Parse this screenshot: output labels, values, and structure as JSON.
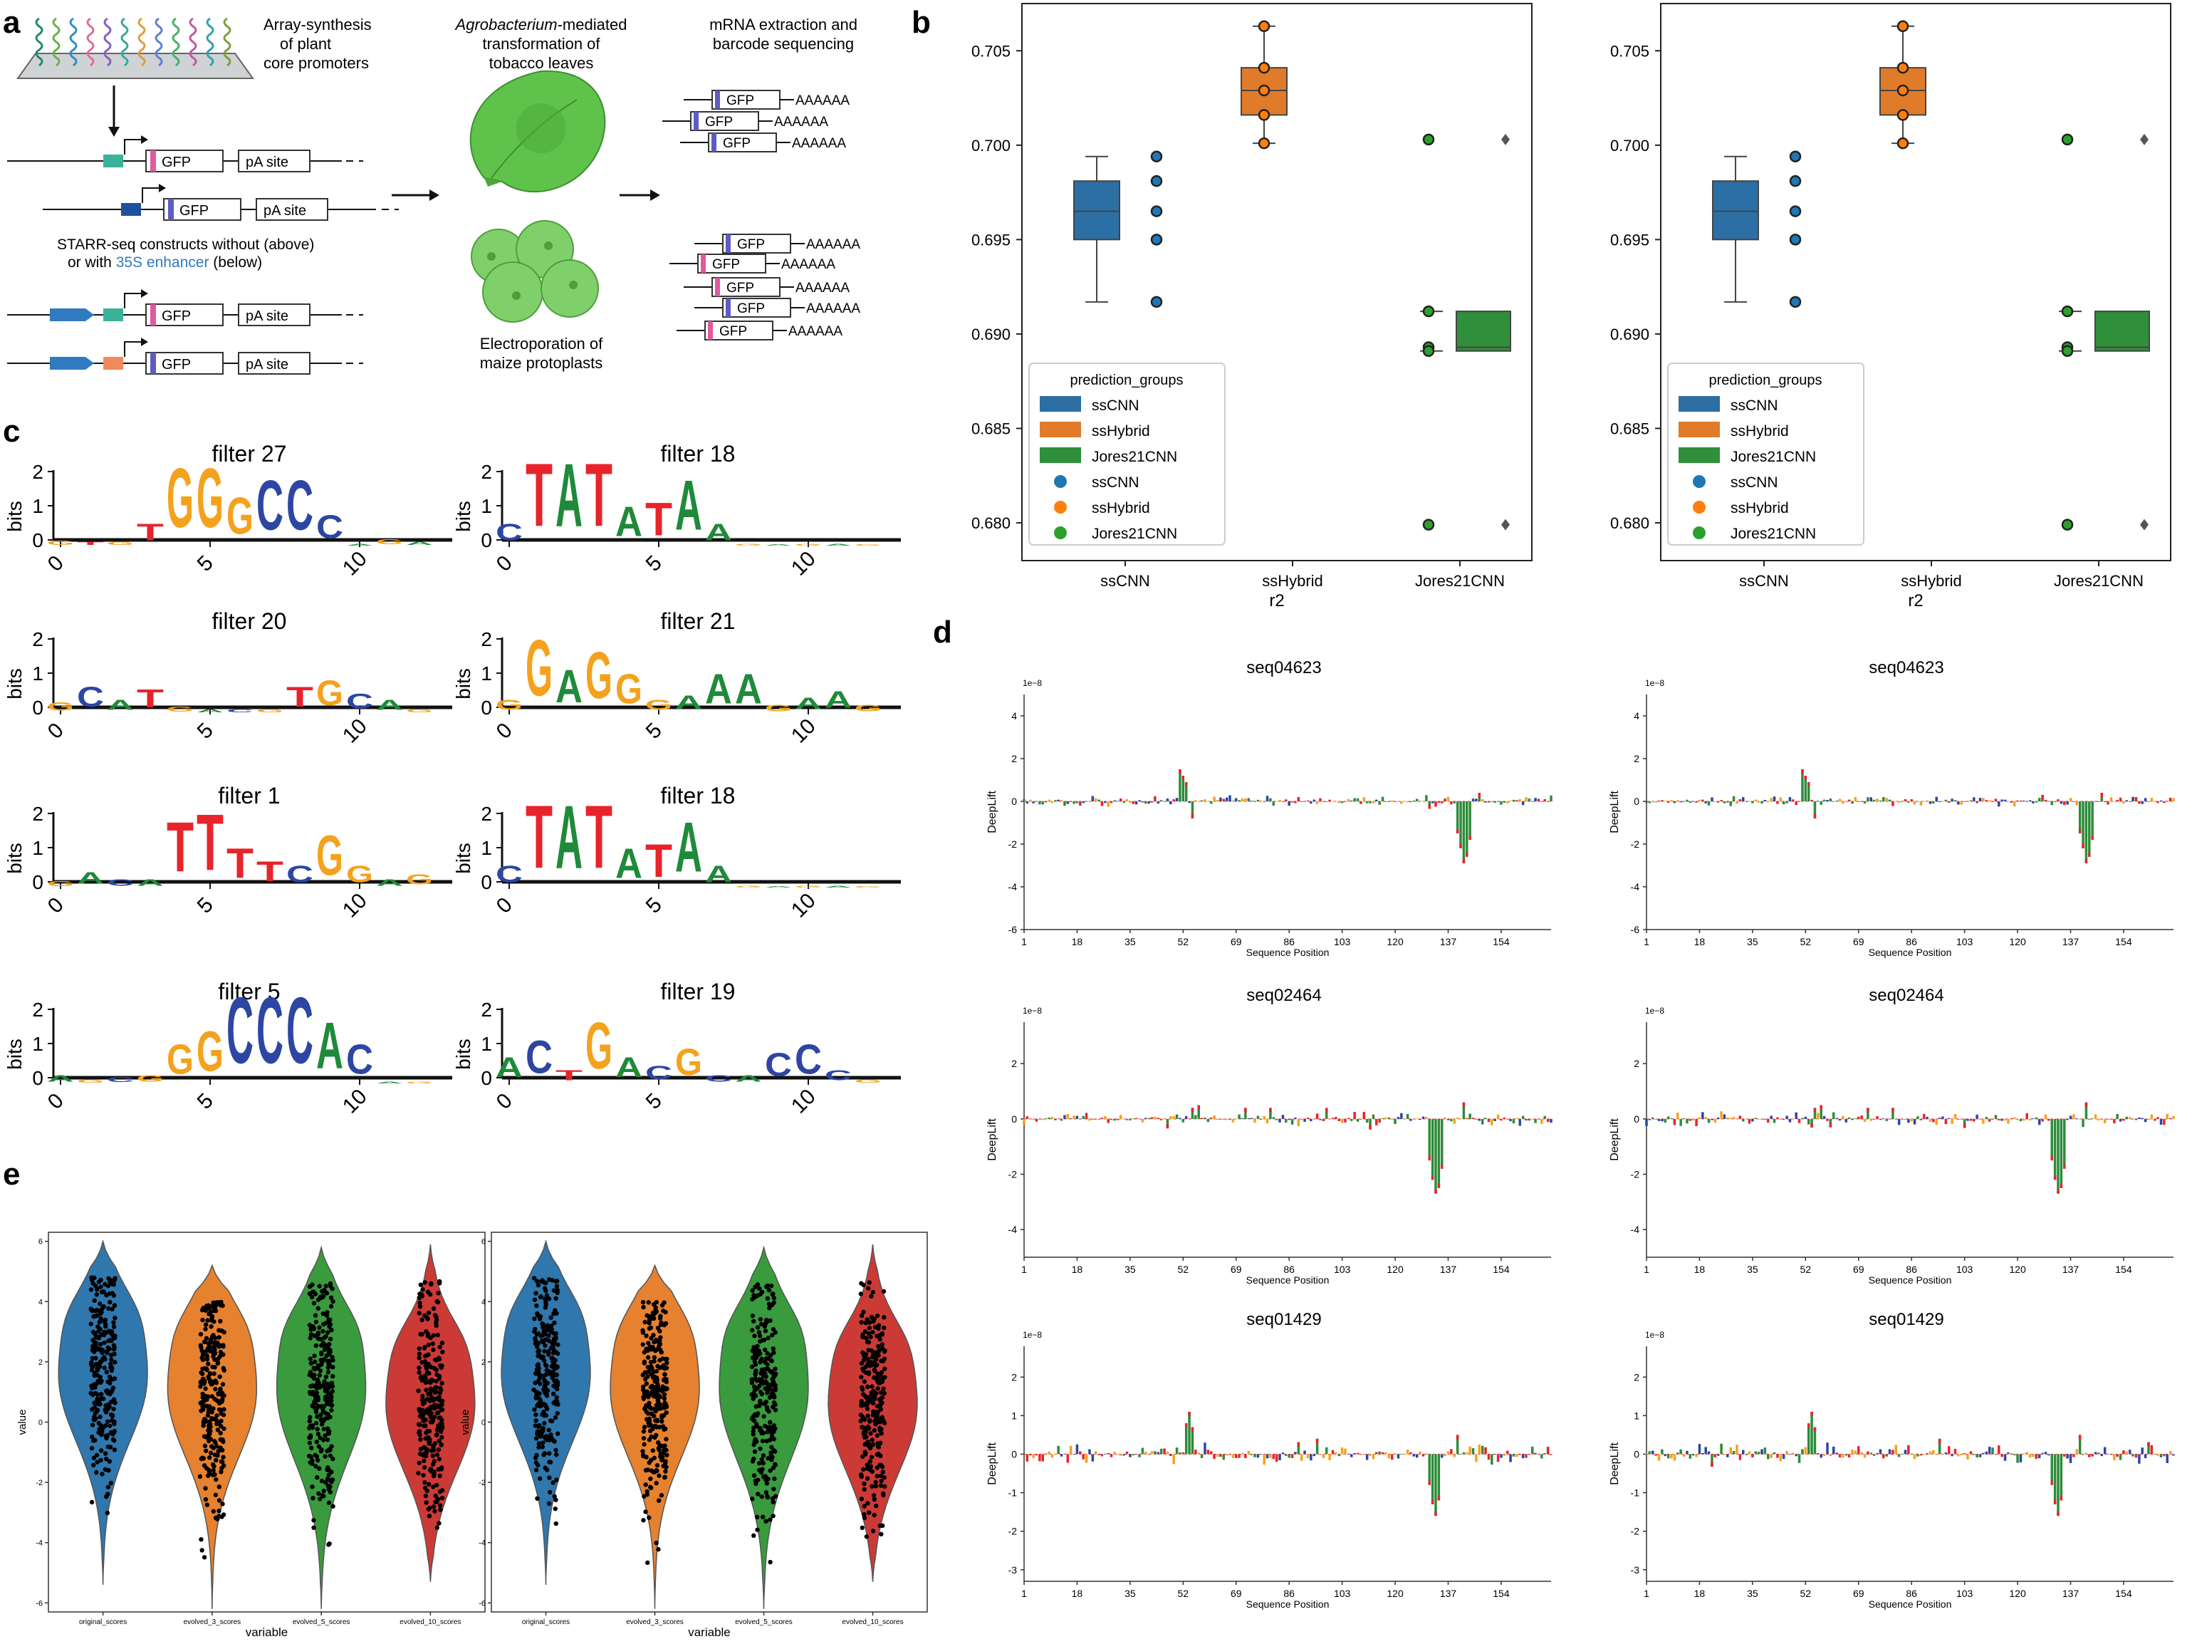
{
  "panel_letters": {
    "a": "a",
    "b": "b",
    "c": "c",
    "d": "d",
    "e": "e"
  },
  "panel_a": {
    "label_array": [
      "Array-synthesis",
      "of plant",
      "core promoters"
    ],
    "label_agro_italic": "Agrobacterium",
    "label_agro_rest": "-mediated",
    "label_agro2": "transformation of",
    "label_agro3": "tobacco leaves",
    "label_mrna": [
      "mRNA extraction and",
      "barcode sequencing"
    ],
    "label_starr1": "STARR-seq constructs without (above)",
    "label_starr2_pre": "or with ",
    "label_starr2_enh": "35S enhancer",
    "label_starr2_post": " (below)",
    "label_electro": [
      "Electroporation of",
      "maize protoplasts"
    ],
    "gfp": "GFP",
    "pa_site": "pA site",
    "polyA": "AAAAAA",
    "colors": {
      "enhancer": "#2f7ac0",
      "leaf": "#5fc24a",
      "protoplast": "#7fcf6b"
    }
  },
  "panel_b": {
    "legend_title": "prediction_groups",
    "legend_items": [
      "ssCNN",
      "ssHybrid",
      "Jores21CNN",
      "ssCNN",
      "ssHybrid",
      "Jores21CNN"
    ],
    "colors": {
      "ssCNN": "#2c6fa5",
      "ssHybrid": "#e07b2a",
      "Jores21CNN": "#2f8f3a",
      "dot_ssCNN": "#1f77b4",
      "dot_ssHybrid": "#ff7f0e",
      "dot_Jores21CNN": "#2ca02c"
    }
  },
  "panel_c": {
    "titles": [
      "filter 27",
      "filter 18",
      "filter 20",
      "filter 21",
      "filter 1",
      "filter 18",
      "filter 5",
      "filter 19"
    ],
    "ylabel": "bits",
    "yticks": [
      "0",
      "1",
      "2"
    ],
    "xticks": [
      "0",
      "5",
      "10"
    ],
    "logos": [
      [
        [
          "G",
          0.12,
          0
        ],
        [
          "T",
          0.1,
          1
        ],
        [
          "G",
          0.1,
          2
        ],
        [
          "GT",
          0.5,
          3
        ],
        [
          "G",
          1.8,
          4
        ],
        [
          "G",
          1.8,
          5
        ],
        [
          "G",
          1.1,
          6
        ],
        [
          "C",
          1.5,
          7
        ],
        [
          "C",
          1.5,
          8
        ],
        [
          "C",
          0.7,
          9
        ],
        [
          "A",
          0.05,
          10
        ],
        [
          "G",
          0.15,
          11
        ],
        [
          "A",
          0.1,
          12
        ]
      ],
      [
        [
          "C",
          0.5,
          0
        ],
        [
          "T",
          1.9,
          1
        ],
        [
          "A",
          1.9,
          2
        ],
        [
          "T",
          1.9,
          3
        ],
        [
          "A",
          0.9,
          4
        ],
        [
          "T",
          1.0,
          5
        ],
        [
          "A",
          1.5,
          6
        ],
        [
          "A",
          0.5,
          7
        ],
        [
          "G",
          0.05,
          8
        ],
        [
          "A",
          0.04,
          9
        ],
        [
          "G",
          0.05,
          10
        ],
        [
          "A",
          0.05,
          11
        ],
        [
          "G",
          0.04,
          12
        ]
      ],
      [
        [
          "G",
          0.25,
          0
        ],
        [
          "C",
          0.6,
          1
        ],
        [
          "A",
          0.3,
          2
        ],
        [
          "T",
          0.55,
          3
        ],
        [
          "G",
          0.15,
          4
        ],
        [
          "A",
          0.1,
          5
        ],
        [
          "C",
          0.1,
          6
        ],
        [
          "G",
          0.1,
          7
        ],
        [
          "T",
          0.6,
          8
        ],
        [
          "G",
          0.75,
          9
        ],
        [
          "C",
          0.45,
          10
        ],
        [
          "A",
          0.3,
          11
        ],
        [
          "G",
          0.1,
          12
        ]
      ],
      [
        [
          "G",
          0.3,
          0
        ],
        [
          "G",
          1.7,
          1
        ],
        [
          "A",
          1.0,
          2
        ],
        [
          "G",
          1.4,
          3
        ],
        [
          "G",
          0.9,
          4
        ],
        [
          "G",
          0.3,
          5
        ],
        [
          "A",
          0.4,
          6
        ],
        [
          "A",
          0.9,
          7
        ],
        [
          "A",
          0.9,
          8
        ],
        [
          "G",
          0.2,
          9
        ],
        [
          "A",
          0.35,
          10
        ],
        [
          "A",
          0.5,
          11
        ],
        [
          "G",
          0.2,
          12
        ]
      ],
      [
        [
          "G",
          0.15,
          0
        ],
        [
          "A",
          0.35,
          1
        ],
        [
          "C",
          0.2,
          2
        ],
        [
          "A",
          0.2,
          3
        ],
        [
          "T",
          1.5,
          4
        ],
        [
          "T",
          1.7,
          5
        ],
        [
          "T",
          0.9,
          6
        ],
        [
          "T",
          0.6,
          7
        ],
        [
          "C",
          0.5,
          8
        ],
        [
          "G",
          1.2,
          9
        ],
        [
          "G",
          0.5,
          10
        ],
        [
          "A",
          0.2,
          11
        ],
        [
          "G",
          0.3,
          12
        ]
      ],
      [
        [
          "C",
          0.5,
          0
        ],
        [
          "T",
          1.9,
          1
        ],
        [
          "A",
          1.9,
          2
        ],
        [
          "T",
          1.9,
          3
        ],
        [
          "A",
          0.9,
          4
        ],
        [
          "T",
          1.0,
          5
        ],
        [
          "A",
          1.5,
          6
        ],
        [
          "A",
          0.5,
          7
        ],
        [
          "G",
          0.05,
          8
        ],
        [
          "A",
          0.04,
          9
        ],
        [
          "G",
          0.05,
          10
        ],
        [
          "A",
          0.05,
          11
        ],
        [
          "G",
          0.04,
          12
        ]
      ],
      [
        [
          "A",
          0.2,
          0
        ],
        [
          "G",
          0.1,
          1
        ],
        [
          "C",
          0.15,
          2
        ],
        [
          "G",
          0.2,
          3
        ],
        [
          "G",
          0.9,
          4
        ],
        [
          "G",
          1.2,
          5
        ],
        [
          "C",
          2.0,
          6
        ],
        [
          "C",
          2.0,
          7
        ],
        [
          "C",
          2.0,
          8
        ],
        [
          "A",
          1.4,
          9
        ],
        [
          "C",
          0.9,
          10
        ],
        [
          "A",
          0.05,
          11
        ],
        [
          "G",
          0.05,
          12
        ]
      ],
      [
        [
          "A",
          0.6,
          0
        ],
        [
          "C",
          1.0,
          1
        ],
        [
          "T",
          0.3,
          2
        ],
        [
          "G",
          1.4,
          3
        ],
        [
          "A",
          0.6,
          4
        ],
        [
          "C",
          0.4,
          5
        ],
        [
          "G",
          0.8,
          6
        ],
        [
          "C",
          0.2,
          7
        ],
        [
          "A",
          0.2,
          8
        ],
        [
          "C",
          0.7,
          9
        ],
        [
          "C",
          0.9,
          10
        ],
        [
          "C",
          0.3,
          11
        ],
        [
          "G",
          0.1,
          12
        ]
      ]
    ],
    "base_colors": {
      "A": "#1f8a3a",
      "C": "#2d46a3",
      "G": "#f4a21d",
      "T": "#e8232a"
    }
  },
  "chart_data": [
    {
      "type": "box",
      "panel": "b-left",
      "categories": [
        "ssCNN",
        "ssHybrid",
        "Jores21CNN"
      ],
      "xlabel": "r2",
      "ylabel": "",
      "ylim": [
        0.678,
        0.7075
      ],
      "yticks": [
        0.68,
        0.685,
        0.69,
        0.695,
        0.7,
        0.705
      ],
      "series": [
        {
          "name": "ssCNN",
          "box": {
            "min": 0.6917,
            "q1": 0.695,
            "median": 0.6965,
            "q3": 0.6981,
            "max": 0.6994
          },
          "points": [
            0.6994,
            0.6981,
            0.6965,
            0.695,
            0.6917
          ]
        },
        {
          "name": "ssHybrid",
          "box": {
            "min": 0.7001,
            "q1": 0.7016,
            "median": 0.7029,
            "q3": 0.7041,
            "max": 0.7063
          },
          "points": [
            0.7063,
            0.7041,
            0.7029,
            0.7016,
            0.7001
          ]
        },
        {
          "name": "Jores21CNN",
          "box": {
            "min": 0.6891,
            "q1": 0.6891,
            "median": 0.6893,
            "q3": 0.6912,
            "max": 0.6912
          },
          "points": [
            0.7003,
            0.6912,
            0.6893,
            0.6891,
            0.6799
          ],
          "outliers": [
            0.7003,
            0.6799
          ]
        }
      ]
    },
    {
      "type": "box",
      "panel": "b-right",
      "categories": [
        "ssCNN",
        "ssHybrid",
        "Jores21CNN"
      ],
      "xlabel": "r2",
      "ylabel": "",
      "ylim": [
        0.678,
        0.7075
      ],
      "yticks": [
        0.68,
        0.685,
        0.69,
        0.695,
        0.7,
        0.705
      ],
      "series": [
        {
          "name": "ssCNN",
          "box": {
            "min": 0.6917,
            "q1": 0.695,
            "median": 0.6965,
            "q3": 0.6981,
            "max": 0.6994
          },
          "points": [
            0.6994,
            0.6981,
            0.6965,
            0.695,
            0.6917
          ]
        },
        {
          "name": "ssHybrid",
          "box": {
            "min": 0.7001,
            "q1": 0.7016,
            "median": 0.7029,
            "q3": 0.7041,
            "max": 0.7063
          },
          "points": [
            0.7063,
            0.7041,
            0.7029,
            0.7016,
            0.7001
          ]
        },
        {
          "name": "Jores21CNN",
          "box": {
            "min": 0.6891,
            "q1": 0.6891,
            "median": 0.6893,
            "q3": 0.6912,
            "max": 0.6912
          },
          "points": [
            0.7003,
            0.6912,
            0.6893,
            0.6891,
            0.6799
          ],
          "outliers": [
            0.7003,
            0.6799
          ]
        }
      ]
    },
    {
      "type": "bar",
      "panel": "d",
      "title": "seq04623",
      "ylabel": "DeepLift",
      "xlabel": "Sequence Position",
      "scale_note": "1e−8",
      "ylim": [
        -6,
        5
      ],
      "yticks": [
        4,
        2,
        0,
        -2,
        -4,
        -6
      ],
      "xticks": [
        1,
        18,
        35,
        52,
        69,
        86,
        103,
        120,
        137,
        154
      ],
      "peaks": [
        [
          51,
          1.5
        ],
        [
          52,
          1.2
        ],
        [
          53,
          0.9
        ],
        [
          55,
          -0.8
        ],
        [
          140,
          -1.5
        ],
        [
          141,
          -2.2
        ],
        [
          142,
          -2.9
        ],
        [
          143,
          -2.6
        ],
        [
          144,
          -1.8
        ],
        [
          147,
          0.4
        ]
      ]
    },
    {
      "type": "bar",
      "panel": "d",
      "title": "seq02464",
      "ylabel": "DeepLift",
      "xlabel": "Sequence Position",
      "scale_note": "1e−8",
      "ylim": [
        -5,
        3.5
      ],
      "yticks": [
        2,
        0,
        -2,
        -4
      ],
      "xticks": [
        1,
        18,
        35,
        52,
        69,
        86,
        103,
        120,
        137,
        154
      ],
      "peaks": [
        [
          55,
          0.4
        ],
        [
          57,
          0.5
        ],
        [
          72,
          0.4
        ],
        [
          80,
          0.4
        ],
        [
          131,
          -1.5
        ],
        [
          132,
          -2.2
        ],
        [
          133,
          -2.7
        ],
        [
          134,
          -2.5
        ],
        [
          135,
          -1.8
        ],
        [
          142,
          0.6
        ]
      ]
    },
    {
      "type": "bar",
      "panel": "d",
      "title": "seq01429",
      "ylabel": "DeepLift",
      "xlabel": "Sequence Position",
      "scale_note": "1e−8",
      "ylim": [
        -3.3,
        2.8
      ],
      "yticks": [
        2,
        1,
        0,
        -1,
        -2,
        -3
      ],
      "xticks": [
        1,
        18,
        35,
        52,
        69,
        86,
        103,
        120,
        137,
        154
      ],
      "peaks": [
        [
          53,
          0.8
        ],
        [
          54,
          1.1
        ],
        [
          55,
          0.7
        ],
        [
          59,
          0.3
        ],
        [
          95,
          0.4
        ],
        [
          131,
          -0.8
        ],
        [
          132,
          -1.3
        ],
        [
          133,
          -1.6
        ],
        [
          134,
          -1.2
        ],
        [
          140,
          0.5
        ]
      ]
    },
    {
      "type": "violin",
      "panel": "e",
      "categories": [
        "original_scores",
        "evolved_3_scores",
        "evolved_5_scores",
        "evolved_10_scores"
      ],
      "xlabel": "variable",
      "ylabel": "value",
      "ylim": [
        -6.3,
        6.3
      ],
      "yticks": [
        6,
        4,
        2,
        0,
        -2,
        -4,
        -6
      ],
      "colors": [
        "#2f77ad",
        "#e6812f",
        "#3a9a3e",
        "#cc3a36"
      ],
      "series": [
        {
          "name": "original_scores",
          "min": -4.0,
          "max": 4.8,
          "median": 1.5
        },
        {
          "name": "evolved_3_scores",
          "min": -4.8,
          "max": 4.0,
          "median": 1.0
        },
        {
          "name": "evolved_5_scores",
          "min": -4.8,
          "max": 4.6,
          "median": 1.0
        },
        {
          "name": "evolved_10_scores",
          "min": -3.9,
          "max": 4.7,
          "median": 0.5
        }
      ]
    }
  ]
}
